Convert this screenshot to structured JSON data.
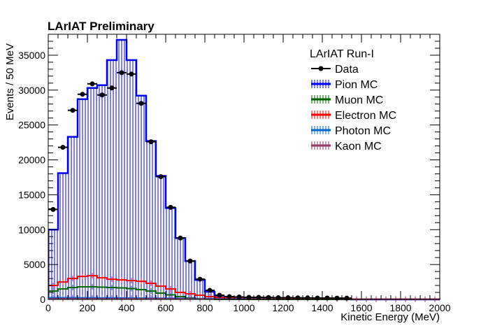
{
  "chart_data": {
    "type": "bar",
    "title": "LArIAT Preliminary",
    "xlabel": "Kinetic Energy (MeV)",
    "ylabel": "Events / 50 MeV",
    "xlim": [
      0,
      2000
    ],
    "ylim": [
      0,
      38000
    ],
    "bin_width": 50,
    "x_ticks": [
      0,
      200,
      400,
      600,
      800,
      1000,
      1200,
      1400,
      1600,
      1800,
      2000
    ],
    "y_ticks": [
      0,
      5000,
      10000,
      15000,
      20000,
      25000,
      30000,
      35000
    ],
    "grid": false,
    "legend_placement": "top-right",
    "legend_header": "LArIAT Run-I",
    "legend": [
      {
        "label": "Data",
        "color": "#000000",
        "style": "marker"
      },
      {
        "label": "Pion MC",
        "color": "#0000ff",
        "style": "hatch"
      },
      {
        "label": "Muon MC",
        "color": "#006600",
        "style": "hatch"
      },
      {
        "label": "Electron MC",
        "color": "#ff0000",
        "style": "hatch"
      },
      {
        "label": "Photon MC",
        "color": "#0066cc",
        "style": "hatch"
      },
      {
        "label": "Kaon MC",
        "color": "#993366",
        "style": "hatch"
      }
    ],
    "series": [
      {
        "name": "Pion MC",
        "color": "#0000ff",
        "style": "hatched-histogram",
        "values": [
          10000,
          18100,
          23300,
          28700,
          30300,
          30700,
          34300,
          37200,
          34300,
          29200,
          22700,
          17700,
          13100,
          8800,
          5500,
          2800,
          1100,
          350,
          200,
          150,
          120,
          100,
          90,
          80,
          70,
          60,
          50,
          40,
          30,
          20,
          10,
          0,
          0,
          0,
          0,
          0,
          0,
          0,
          0,
          0
        ]
      },
      {
        "name": "Muon MC",
        "color": "#006600",
        "style": "histogram",
        "values": [
          1200,
          1500,
          1700,
          1800,
          1800,
          1750,
          1700,
          1650,
          1550,
          1400,
          1200,
          900,
          650,
          400,
          200,
          100,
          40,
          0,
          0,
          0,
          0,
          0,
          0,
          0,
          0,
          0,
          0,
          0,
          0,
          0,
          0,
          0,
          0,
          0,
          0,
          0,
          0,
          0,
          0,
          0
        ]
      },
      {
        "name": "Electron MC",
        "color": "#ff0000",
        "style": "histogram",
        "values": [
          2000,
          2500,
          3000,
          3300,
          3400,
          3100,
          2900,
          2800,
          2700,
          2600,
          2300,
          1900,
          1500,
          1000,
          800,
          600,
          400,
          300,
          250,
          200,
          180,
          150,
          130,
          120,
          100,
          90,
          80,
          70,
          60,
          50,
          40,
          30,
          20,
          10,
          10,
          10,
          0,
          0,
          0,
          0
        ]
      },
      {
        "name": "Photon MC",
        "color": "#0066cc",
        "style": "histogram",
        "values": [
          250,
          250,
          250,
          240,
          240,
          230,
          220,
          210,
          200,
          190,
          180,
          170,
          160,
          150,
          140,
          130,
          120,
          110,
          100,
          100,
          90,
          90,
          80,
          80,
          70,
          70,
          60,
          60,
          50,
          50,
          40,
          40,
          30,
          30,
          30,
          30,
          30,
          30,
          30,
          30
        ]
      },
      {
        "name": "Kaon MC",
        "color": "#993366",
        "style": "histogram",
        "values": [
          80,
          80,
          80,
          80,
          80,
          80,
          80,
          80,
          70,
          70,
          70,
          70,
          60,
          60,
          60,
          60,
          50,
          50,
          50,
          50,
          50,
          50,
          50,
          50,
          50,
          50,
          50,
          50,
          50,
          50,
          50,
          50,
          50,
          50,
          50,
          50,
          50,
          50,
          50,
          50
        ]
      },
      {
        "name": "Data",
        "color": "#000000",
        "style": "points",
        "values": [
          12900,
          21800,
          27100,
          29400,
          30900,
          29300,
          30300,
          32500,
          32300,
          28100,
          22600,
          17600,
          13200,
          8800,
          5500,
          2900,
          1300,
          600,
          400,
          350,
          300,
          300,
          280,
          250,
          250,
          230,
          220,
          200,
          200,
          190,
          180,
          0,
          0,
          0,
          0,
          0,
          0,
          0,
          0,
          0
        ]
      }
    ]
  }
}
